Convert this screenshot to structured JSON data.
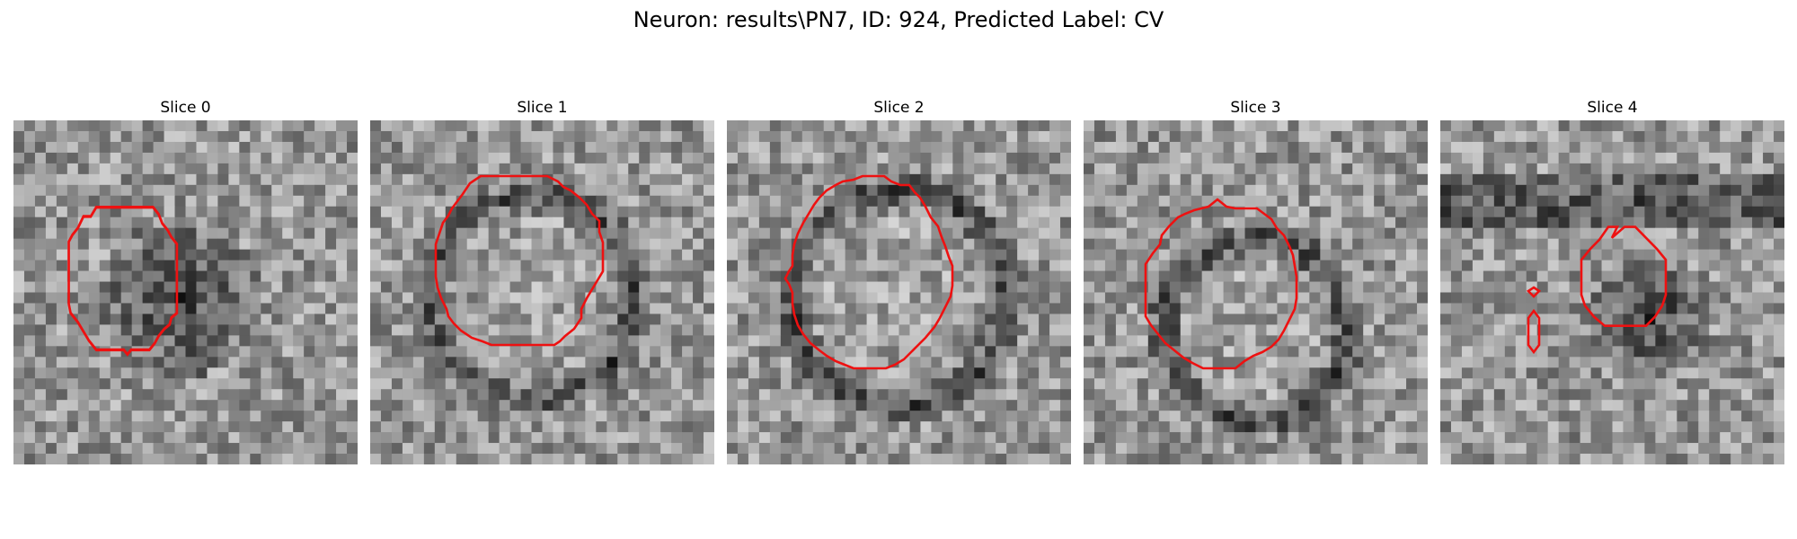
{
  "figure": {
    "title": "Neuron: results\\PN7, ID: 924, Predicted Label: CV"
  },
  "colors": {
    "contour": "#ee1111",
    "background": "#ffffff"
  },
  "image_kind": "grayscale microscopy slices with red segmentation contour",
  "panels": [
    {
      "title": "Slice 0"
    },
    {
      "title": "Slice 1"
    },
    {
      "title": "Slice 2"
    },
    {
      "title": "Slice 3"
    },
    {
      "title": "Slice 4"
    }
  ]
}
